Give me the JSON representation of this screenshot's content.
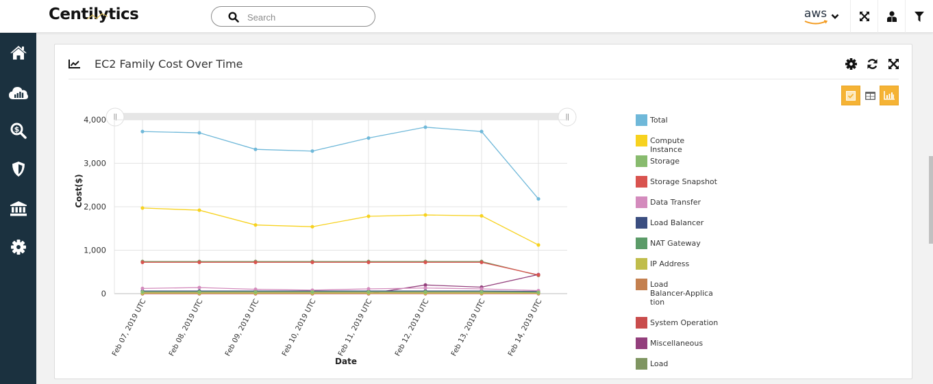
{
  "app": {
    "logo": "Centilytics",
    "search": {
      "placeholder": "Search",
      "value": ""
    },
    "cloud_provider": "aws",
    "topbar_icons": [
      "expand-icon",
      "user-icon",
      "filter-icon"
    ]
  },
  "sidebar": {
    "items": [
      {
        "name": "home",
        "icon": "home-icon"
      },
      {
        "name": "cloud-analytics",
        "icon": "cloud-chart-icon"
      },
      {
        "name": "cost-search",
        "icon": "dollar-search-icon"
      },
      {
        "name": "security",
        "icon": "shield-icon"
      },
      {
        "name": "governance",
        "icon": "bank-icon"
      },
      {
        "name": "settings",
        "icon": "gear-icon"
      }
    ]
  },
  "widget": {
    "title": "EC2 Family Cost Over Time",
    "title_icon": "line-chart-icon",
    "actions": [
      "gear-icon",
      "refresh-icon",
      "expand-icon"
    ],
    "view_toggle": [
      {
        "name": "select",
        "icon": "checkbox-icon",
        "active": true
      },
      {
        "name": "table",
        "icon": "table-icon",
        "active": false
      },
      {
        "name": "chart",
        "icon": "bar-chart-icon",
        "active": true
      }
    ]
  },
  "colors": {
    "sidebar": "#1b313f",
    "accent": "#f5b335"
  },
  "chart_data": {
    "type": "line",
    "title": "EC2 Family Cost Over Time",
    "xlabel": "Date",
    "ylabel": "Cost($)",
    "ylim": [
      0,
      4000
    ],
    "yticks": [
      "0",
      "1,000",
      "2,000",
      "3,000",
      "4,000"
    ],
    "grid": true,
    "legend_position": "right",
    "categories": [
      "Feb 07, 2019 UTC",
      "Feb 08, 2019 UTC",
      "Feb 09, 2019 UTC",
      "Feb 10, 2019 UTC",
      "Feb 11, 2019 UTC",
      "Feb 12, 2019 UTC",
      "Feb 13, 2019 UTC",
      "Feb 14, 2019 UTC"
    ],
    "series": [
      {
        "name": "Total",
        "color": "#6fb8d9",
        "values": [
          3730,
          3700,
          3320,
          3280,
          3580,
          3830,
          3730,
          2180
        ]
      },
      {
        "name": "Compute Instance",
        "color": "#f7d21f",
        "values": [
          1970,
          1920,
          1580,
          1540,
          1780,
          1810,
          1790,
          1120
        ]
      },
      {
        "name": "Storage",
        "color": "#88bb6e",
        "values": [
          40,
          40,
          40,
          40,
          40,
          40,
          40,
          30
        ]
      },
      {
        "name": "Storage Snapshot",
        "color": "#d9534f",
        "values": [
          720,
          720,
          720,
          720,
          720,
          720,
          720,
          430
        ]
      },
      {
        "name": "Data Transfer",
        "color": "#d48bbd",
        "values": [
          120,
          140,
          100,
          80,
          110,
          130,
          110,
          70
        ]
      },
      {
        "name": "Load Balancer",
        "color": "#3b4e80",
        "values": [
          60,
          60,
          60,
          60,
          60,
          60,
          60,
          50
        ]
      },
      {
        "name": "NAT Gateway",
        "color": "#5b9b68",
        "values": [
          50,
          50,
          50,
          50,
          50,
          50,
          50,
          40
        ]
      },
      {
        "name": "IP Address",
        "color": "#c0bd4b",
        "values": [
          10,
          10,
          10,
          10,
          10,
          10,
          10,
          10
        ]
      },
      {
        "name": "Load Balancer-Application",
        "color": "#c4804f",
        "values": [
          20,
          20,
          20,
          20,
          20,
          20,
          20,
          20
        ]
      },
      {
        "name": "System Operation",
        "color": "#c94c4c",
        "values": [
          0,
          0,
          0,
          0,
          0,
          0,
          0,
          0
        ]
      },
      {
        "name": "Miscellaneous",
        "color": "#933f7c",
        "values": [
          0,
          0,
          0,
          0,
          0,
          200,
          150,
          440
        ]
      },
      {
        "name": "Load",
        "color": "#7f9561",
        "values": [
          740,
          740,
          740,
          740,
          740,
          740,
          740,
          420
        ]
      }
    ]
  }
}
